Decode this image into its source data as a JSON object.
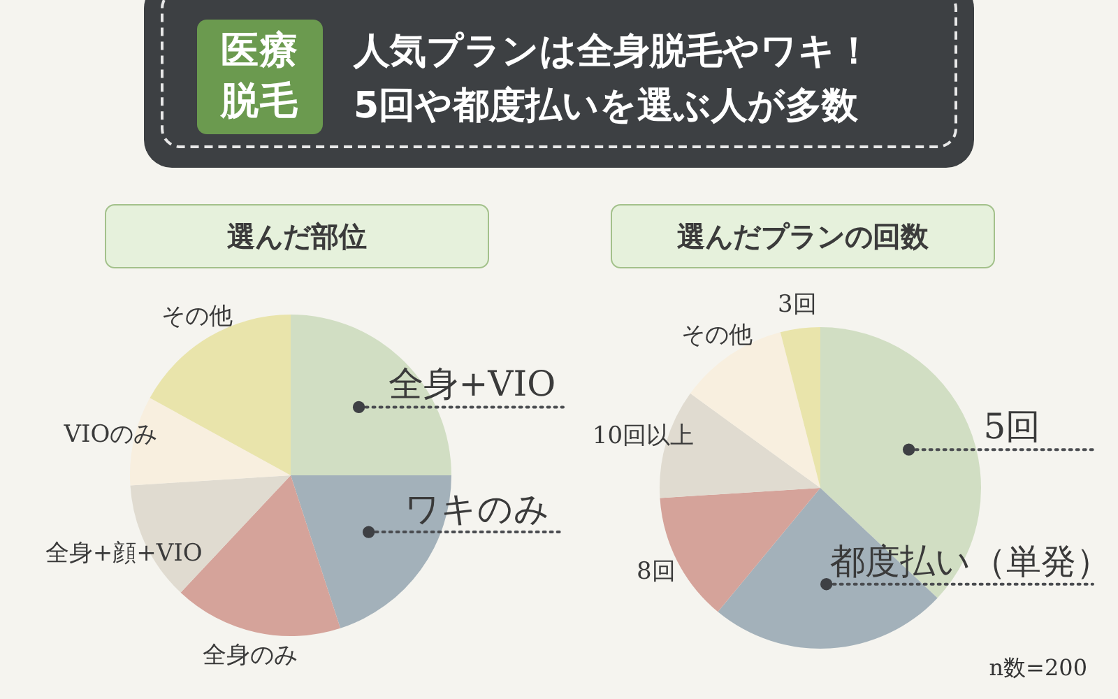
{
  "chart_data": [
    {
      "type": "other",
      "title": "人気プランは全身脱毛やワキ！\n5回や都度払いを選ぶ人が多数",
      "annotations": [
        "医療脱毛"
      ]
    },
    {
      "type": "pie",
      "title": "選んだ部位",
      "categories": [
        "全身+VIO",
        "ワキのみ",
        "全身のみ",
        "全身+顔+VIO",
        "VIOのみ",
        "その他"
      ],
      "values": [
        25,
        20,
        17,
        12,
        9,
        17
      ],
      "colors": [
        "#d1dec3",
        "#a3b1ba",
        "#d5a39a",
        "#e0dbd0",
        "#f8efdf",
        "#e9e4ab"
      ]
    },
    {
      "type": "pie",
      "title": "選んだプランの回数",
      "categories": [
        "5回",
        "都度払い（単発）",
        "8回",
        "10回以上",
        "その他",
        "3回"
      ],
      "values": [
        37,
        24,
        13,
        11,
        11,
        4
      ],
      "colors": [
        "#d1dec3",
        "#a3b1ba",
        "#d5a39a",
        "#e0dbd0",
        "#f8efdf",
        "#e9e4ab"
      ],
      "annotations": [
        "n数=200"
      ]
    }
  ]
}
